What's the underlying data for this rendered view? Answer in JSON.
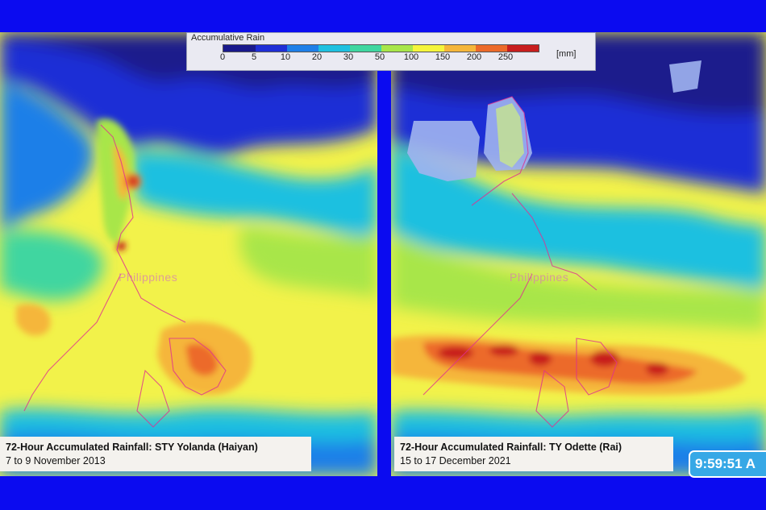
{
  "legend": {
    "title": "Accumulative Rain",
    "ticks": [
      "0",
      "5",
      "10",
      "20",
      "30",
      "50",
      "100",
      "150",
      "200",
      "250"
    ],
    "unit": "[mm]",
    "colors": [
      "#1a1a8c",
      "#1f2fd6",
      "#1e7fe8",
      "#1ec0e0",
      "#3fd6a0",
      "#a8e64a",
      "#f5f53c",
      "#f5b63a",
      "#ec6a2a",
      "#c81e1e"
    ]
  },
  "panels": [
    {
      "title": "72-Hour Accumulated Rainfall: STY Yolanda (Haiyan)",
      "dates": "7 to 9 November 2013",
      "place_label": "Philippines"
    },
    {
      "title": "72-Hour Accumulated Rainfall: TY Odette (Rai)",
      "dates": "15 to 17 December 2021",
      "place_label": "Philippines"
    }
  ],
  "clock": "9:59:51 A",
  "colors": {
    "frame": "#0b0bf0",
    "clock_bg": "#36a8e6"
  }
}
